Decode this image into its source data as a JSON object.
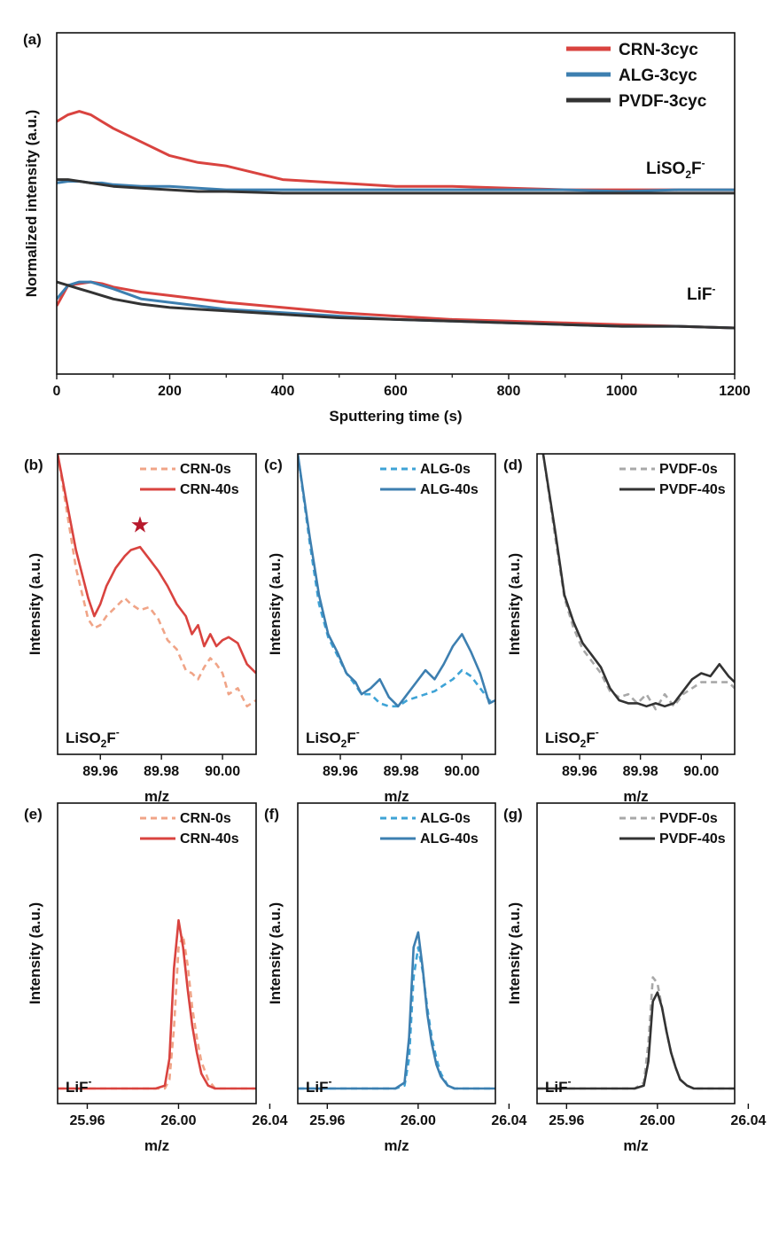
{
  "colors": {
    "crn": "#d9433f",
    "crn_light": "#f0a487",
    "alg": "#3d7fb0",
    "alg_light": "#3ea3d6",
    "pvdf": "#333333",
    "pvdf_light": "#a8a8a8",
    "star": "#b7192c"
  },
  "chart_data": [
    {
      "id": "a",
      "panel_label": "(a)",
      "type": "line",
      "xlabel": "Sputtering time (s)",
      "ylabel": "Normalized intensity (a.u.)",
      "xlim": [
        0,
        1200
      ],
      "ylim": [
        0,
        1
      ],
      "xticks": [
        "0",
        "200",
        "400",
        "600",
        "800",
        "1000",
        "1200"
      ],
      "legend_position": "top-right",
      "annotations": [
        {
          "base": "LiSO",
          "sub": "2",
          "mid": "F",
          "sup": "-"
        },
        {
          "base": "LiF",
          "sup": "-"
        }
      ],
      "x": [
        0,
        20,
        40,
        60,
        80,
        100,
        150,
        200,
        250,
        300,
        400,
        500,
        600,
        700,
        800,
        900,
        1000,
        1100,
        1200
      ],
      "series": [
        {
          "name": "CRN-3cyc",
          "color": "#d9433f",
          "values": [
            0.74,
            0.76,
            0.77,
            0.76,
            0.74,
            0.72,
            0.68,
            0.64,
            0.62,
            0.61,
            0.57,
            0.56,
            0.55,
            0.55,
            0.545,
            0.54,
            0.54,
            0.54,
            0.54
          ]
        },
        {
          "name": "ALG-3cyc",
          "color": "#3d7fb0",
          "values": [
            0.56,
            0.565,
            0.565,
            0.56,
            0.56,
            0.555,
            0.55,
            0.55,
            0.545,
            0.54,
            0.54,
            0.54,
            0.54,
            0.54,
            0.54,
            0.54,
            0.535,
            0.54,
            0.54
          ]
        },
        {
          "name": "PVDF-3cyc",
          "color": "#333333",
          "values": [
            0.57,
            0.57,
            0.565,
            0.56,
            0.555,
            0.55,
            0.545,
            0.54,
            0.535,
            0.535,
            0.53,
            0.53,
            0.53,
            0.53,
            0.53,
            0.53,
            0.53,
            0.53,
            0.53
          ]
        },
        {
          "name": "CRN-3cyc LiF",
          "color": "#d9433f",
          "values": [
            0.2,
            0.26,
            0.265,
            0.27,
            0.265,
            0.255,
            0.24,
            0.23,
            0.22,
            0.21,
            0.195,
            0.18,
            0.17,
            0.16,
            0.155,
            0.15,
            0.145,
            0.14,
            0.135
          ]
        },
        {
          "name": "ALG-3cyc LiF",
          "color": "#3d7fb0",
          "values": [
            0.22,
            0.26,
            0.27,
            0.27,
            0.26,
            0.25,
            0.22,
            0.21,
            0.2,
            0.19,
            0.18,
            0.17,
            0.16,
            0.155,
            0.15,
            0.145,
            0.14,
            0.14,
            0.135
          ]
        },
        {
          "name": "PVDF-3cyc LiF",
          "color": "#333333",
          "values": [
            0.27,
            0.26,
            0.25,
            0.24,
            0.23,
            0.22,
            0.205,
            0.195,
            0.19,
            0.185,
            0.175,
            0.165,
            0.16,
            0.155,
            0.15,
            0.145,
            0.14,
            0.14,
            0.135
          ]
        }
      ]
    },
    {
      "id": "b",
      "panel_label": "(b)",
      "type": "line",
      "xlabel": "m/z",
      "ylabel": "Intensity (a.u.)",
      "xlim": [
        89.946,
        90.011
      ],
      "ylim": [
        0,
        1
      ],
      "xticks": [
        "89.96",
        "89.98",
        "90.00"
      ],
      "xtick_values": [
        89.96,
        89.98,
        90.0
      ],
      "annotation": {
        "base": "LiSO",
        "sub": "2",
        "mid": "F",
        "sup": "-"
      },
      "marker": {
        "symbol": "★",
        "x": 89.973,
        "y": 0.73
      },
      "x": [
        89.946,
        89.952,
        89.956,
        89.958,
        89.96,
        89.962,
        89.965,
        89.968,
        89.97,
        89.973,
        89.976,
        89.979,
        89.982,
        89.985,
        89.988,
        89.99,
        89.992,
        89.994,
        89.996,
        89.998,
        90.0,
        90.002,
        90.005,
        90.008,
        90.011
      ],
      "series": [
        {
          "name": "CRN-0s",
          "color": "#f0a487",
          "dash": true,
          "values": [
            1.0,
            0.62,
            0.45,
            0.42,
            0.43,
            0.46,
            0.49,
            0.52,
            0.5,
            0.48,
            0.49,
            0.45,
            0.38,
            0.35,
            0.28,
            0.27,
            0.25,
            0.29,
            0.32,
            0.3,
            0.27,
            0.2,
            0.22,
            0.16,
            0.18
          ]
        },
        {
          "name": "CRN-40s",
          "color": "#d9433f",
          "values": [
            1.0,
            0.68,
            0.52,
            0.46,
            0.5,
            0.56,
            0.62,
            0.66,
            0.68,
            0.69,
            0.65,
            0.61,
            0.56,
            0.5,
            0.46,
            0.4,
            0.43,
            0.36,
            0.4,
            0.36,
            0.38,
            0.39,
            0.37,
            0.3,
            0.27
          ]
        }
      ]
    },
    {
      "id": "c",
      "panel_label": "(c)",
      "type": "line",
      "xlabel": "m/z",
      "ylabel": "Intensity (a.u.)",
      "xlim": [
        89.946,
        90.011
      ],
      "ylim": [
        0,
        1
      ],
      "xticks": [
        "89.96",
        "89.98",
        "90.00"
      ],
      "xtick_values": [
        89.96,
        89.98,
        90.0
      ],
      "annotation": {
        "base": "LiSO",
        "sub": "2",
        "mid": "F",
        "sup": "-"
      },
      "x": [
        89.946,
        89.95,
        89.953,
        89.956,
        89.959,
        89.962,
        89.965,
        89.967,
        89.97,
        89.973,
        89.976,
        89.979,
        89.982,
        89.985,
        89.988,
        89.991,
        89.994,
        89.997,
        90.0,
        90.003,
        90.006,
        90.009,
        90.011
      ],
      "series": [
        {
          "name": "ALG-0s",
          "color": "#3ea3d6",
          "dash": true,
          "values": [
            1.0,
            0.7,
            0.5,
            0.39,
            0.33,
            0.27,
            0.23,
            0.2,
            0.2,
            0.17,
            0.16,
            0.16,
            0.18,
            0.19,
            0.2,
            0.21,
            0.23,
            0.25,
            0.28,
            0.26,
            0.22,
            0.18,
            0.17
          ]
        },
        {
          "name": "ALG-40s",
          "color": "#3d7fb0",
          "values": [
            1.0,
            0.72,
            0.53,
            0.4,
            0.34,
            0.27,
            0.24,
            0.2,
            0.22,
            0.25,
            0.19,
            0.16,
            0.2,
            0.24,
            0.28,
            0.25,
            0.3,
            0.36,
            0.4,
            0.34,
            0.27,
            0.17,
            0.18
          ]
        }
      ]
    },
    {
      "id": "d",
      "panel_label": "(d)",
      "type": "line",
      "xlabel": "m/z",
      "ylabel": "Intensity (a.u.)",
      "xlim": [
        89.946,
        90.011
      ],
      "ylim": [
        0,
        1
      ],
      "xticks": [
        "89.96",
        "89.98",
        "90.00"
      ],
      "xtick_values": [
        89.96,
        89.98,
        90.0
      ],
      "annotation": {
        "base": "LiSO",
        "sub": "2",
        "mid": "F",
        "sup": "-"
      },
      "x": [
        89.948,
        89.952,
        89.955,
        89.958,
        89.961,
        89.964,
        89.967,
        89.97,
        89.973,
        89.976,
        89.979,
        89.982,
        89.985,
        89.988,
        89.991,
        89.994,
        89.997,
        90.0,
        90.003,
        90.006,
        90.009,
        90.011
      ],
      "series": [
        {
          "name": "PVDF-0s",
          "color": "#a8a8a8",
          "dash": true,
          "values": [
            1.0,
            0.72,
            0.52,
            0.42,
            0.35,
            0.31,
            0.27,
            0.21,
            0.19,
            0.2,
            0.17,
            0.2,
            0.15,
            0.2,
            0.16,
            0.2,
            0.22,
            0.24,
            0.24,
            0.24,
            0.24,
            0.22
          ]
        },
        {
          "name": "PVDF-40s",
          "color": "#333333",
          "values": [
            1.0,
            0.74,
            0.53,
            0.44,
            0.37,
            0.33,
            0.29,
            0.22,
            0.18,
            0.17,
            0.17,
            0.16,
            0.17,
            0.16,
            0.17,
            0.21,
            0.25,
            0.27,
            0.26,
            0.3,
            0.26,
            0.24
          ]
        }
      ]
    },
    {
      "id": "e",
      "panel_label": "(e)",
      "type": "line",
      "xlabel": "m/z",
      "ylabel": "Intensity (a.u.)",
      "xlim": [
        25.947,
        26.034
      ],
      "ylim": [
        0,
        1
      ],
      "xticks": [
        "25.96",
        "26.00",
        "26.04"
      ],
      "xtick_values": [
        25.96,
        26.0,
        26.04
      ],
      "annotation": {
        "base": "LiF",
        "sup": "-"
      },
      "x": [
        25.947,
        25.99,
        25.994,
        25.996,
        25.998,
        26.0,
        26.002,
        26.004,
        26.006,
        26.008,
        26.01,
        26.013,
        26.016,
        26.034
      ],
      "series": [
        {
          "name": "CRN-0s",
          "color": "#f0a487",
          "dash": true,
          "values": [
            0.05,
            0.05,
            0.05,
            0.08,
            0.25,
            0.52,
            0.56,
            0.46,
            0.32,
            0.22,
            0.14,
            0.08,
            0.05,
            0.05
          ]
        },
        {
          "name": "CRN-40s",
          "color": "#d9433f",
          "values": [
            0.05,
            0.05,
            0.06,
            0.15,
            0.45,
            0.61,
            0.52,
            0.38,
            0.26,
            0.17,
            0.1,
            0.06,
            0.05,
            0.05
          ]
        }
      ]
    },
    {
      "id": "f",
      "panel_label": "(f)",
      "type": "line",
      "xlabel": "m/z",
      "ylabel": "Intensity (a.u.)",
      "xlim": [
        25.947,
        26.034
      ],
      "ylim": [
        0,
        1
      ],
      "xticks": [
        "25.96",
        "26.00",
        "26.04"
      ],
      "xtick_values": [
        25.96,
        26.0,
        26.04
      ],
      "annotation": {
        "base": "LiF",
        "sup": "-"
      },
      "x": [
        25.947,
        25.99,
        25.994,
        25.996,
        25.998,
        26.0,
        26.002,
        26.004,
        26.006,
        26.008,
        26.01,
        26.013,
        26.016,
        26.034
      ],
      "series": [
        {
          "name": "ALG-0s",
          "color": "#3ea3d6",
          "dash": true,
          "values": [
            0.05,
            0.05,
            0.06,
            0.15,
            0.42,
            0.52,
            0.44,
            0.32,
            0.22,
            0.15,
            0.1,
            0.06,
            0.05,
            0.05
          ]
        },
        {
          "name": "ALG-40s",
          "color": "#3d7fb0",
          "values": [
            0.05,
            0.05,
            0.07,
            0.22,
            0.52,
            0.57,
            0.45,
            0.3,
            0.2,
            0.13,
            0.09,
            0.06,
            0.05,
            0.05
          ]
        }
      ]
    },
    {
      "id": "g",
      "panel_label": "(g)",
      "type": "line",
      "xlabel": "m/z",
      "ylabel": "Intensity (a.u.)",
      "xlim": [
        25.947,
        26.034
      ],
      "ylim": [
        0,
        1
      ],
      "xticks": [
        "25.96",
        "26.00",
        "26.04"
      ],
      "xtick_values": [
        25.96,
        26.0,
        26.04
      ],
      "annotation": {
        "base": "LiF",
        "sup": "-"
      },
      "x": [
        25.947,
        25.99,
        25.994,
        25.996,
        25.998,
        26.0,
        26.002,
        26.004,
        26.006,
        26.008,
        26.01,
        26.013,
        26.016,
        26.034
      ],
      "series": [
        {
          "name": "PVDF-0s",
          "color": "#a8a8a8",
          "dash": true,
          "values": [
            0.05,
            0.05,
            0.07,
            0.2,
            0.42,
            0.4,
            0.32,
            0.24,
            0.17,
            0.12,
            0.08,
            0.06,
            0.05,
            0.05
          ]
        },
        {
          "name": "PVDF-40s",
          "color": "#333333",
          "values": [
            0.05,
            0.05,
            0.06,
            0.14,
            0.34,
            0.37,
            0.32,
            0.24,
            0.17,
            0.12,
            0.08,
            0.06,
            0.05,
            0.05
          ]
        }
      ]
    }
  ]
}
